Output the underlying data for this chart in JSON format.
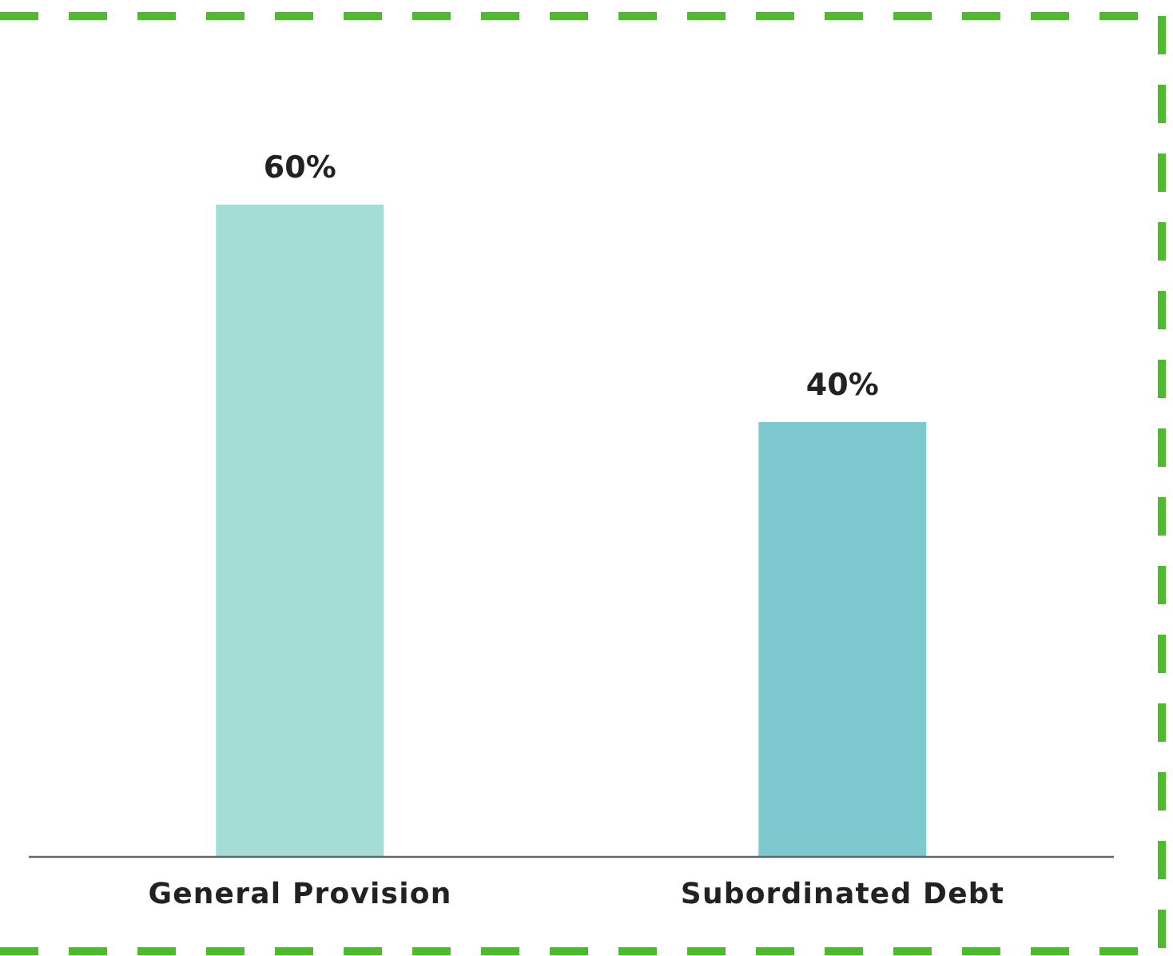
{
  "chart_data": {
    "type": "bar",
    "categories": [
      "General Provision",
      "Subordinated Debt"
    ],
    "values": [
      60,
      40
    ],
    "colors": [
      "#a3ddd5",
      "#7ec8d0"
    ],
    "value_labels": [
      "60%",
      "40%"
    ]
  }
}
